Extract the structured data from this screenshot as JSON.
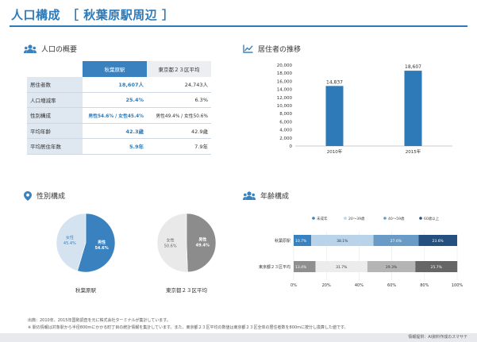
{
  "page": {
    "title": "人口構成　［ 秋葉原駅周辺 ］"
  },
  "overview": {
    "heading": "人口の概要",
    "columns": [
      "秋葉原駅",
      "東京都２３区平均"
    ],
    "rows": [
      {
        "label": "居住者数",
        "a": "18,607人",
        "b": "24,743人"
      },
      {
        "label": "人口増減率",
        "a": "25.4%",
        "b": "6.3%"
      },
      {
        "label": "性別構成",
        "a": "男性54.6% / 女性45.4%",
        "b": "男性49.4% / 女性50.6%"
      },
      {
        "label": "平均年齢",
        "a": "42.3歳",
        "b": "42.9歳"
      },
      {
        "label": "平均居住年数",
        "a": "5.9年",
        "b": "7.9年"
      }
    ]
  },
  "trend": {
    "heading": "居住者の推移"
  },
  "gender": {
    "heading": "性別構成"
  },
  "age": {
    "heading": "年齢構成"
  },
  "footer": {
    "line1": "出典：2010年、2015年国勢調査を元に株式会社ターミナルが集計しています。",
    "line2": "※ 駅の情報は対象駅から半径800mにかかる町丁目の統計情報を集計しています。また、東京都２３区平均の数値は東京都２３区全体の居住者数を800mに按分し換算した値です。",
    "source": "情報提供：AI資料作成のスマサテ"
  },
  "colors": {
    "accent": "#2e7ab8",
    "bar": "#2e7ab8",
    "male_akiba": "#3a82bf",
    "female_akiba": "#d5e3f0",
    "male_tokyo": "#8c8c8c",
    "female_tokyo": "#e9e9e9",
    "age_akiba": [
      "#3a82bf",
      "#b8d3ea",
      "#6a9bc6",
      "#23507e"
    ],
    "age_tokyo": [
      "#8f8f8f",
      "#ececec",
      "#b5b5b5",
      "#666666"
    ]
  },
  "chart_data": [
    {
      "type": "bar",
      "categories": [
        "2010年",
        "2015年"
      ],
      "values": [
        14837,
        18607
      ],
      "ylim": [
        0,
        20000
      ],
      "yticks": [
        "0",
        "2,000",
        "4,000",
        "6,000",
        "8,000",
        "10,000",
        "12,000",
        "14,000",
        "16,000",
        "18,000",
        "20,000"
      ],
      "data_labels": [
        "14,837",
        "18,607"
      ],
      "grid": false
    },
    {
      "type": "pie",
      "title": "秋葉原駅",
      "slices": [
        {
          "name": "男性",
          "value": 54.6,
          "label": "54.6%"
        },
        {
          "name": "女性",
          "value": 45.4,
          "label": "45.4%"
        }
      ]
    },
    {
      "type": "pie",
      "title": "東京都２３区平均",
      "slices": [
        {
          "name": "男性",
          "value": 49.4,
          "label": "49.4%"
        },
        {
          "name": "女性",
          "value": 50.6,
          "label": "50.6%"
        }
      ]
    },
    {
      "type": "bar",
      "orientation": "horizontal-stacked",
      "legend": [
        "未成年",
        "20～39歳",
        "40～59歳",
        "60歳以上"
      ],
      "legend_position": "top",
      "categories": [
        "秋葉原駅",
        "東京都２３区平均"
      ],
      "series": [
        {
          "name": "未成年",
          "values": [
            10.7,
            13.4
          ],
          "labels": [
            "10.7%",
            "13.4%"
          ]
        },
        {
          "name": "20～39歳",
          "values": [
            38.1,
            31.7
          ],
          "labels": [
            "38.1%",
            "31.7%"
          ]
        },
        {
          "name": "40～59歳",
          "values": [
            27.6,
            29.3
          ],
          "labels": [
            "27.6%",
            "29.3%"
          ]
        },
        {
          "name": "60歳以上",
          "values": [
            23.6,
            25.7
          ],
          "labels": [
            "23.6%",
            "25.7%"
          ]
        }
      ],
      "xlim": [
        0,
        100
      ],
      "xticks": [
        "0%",
        "20%",
        "40%",
        "60%",
        "80%",
        "100%"
      ]
    }
  ]
}
